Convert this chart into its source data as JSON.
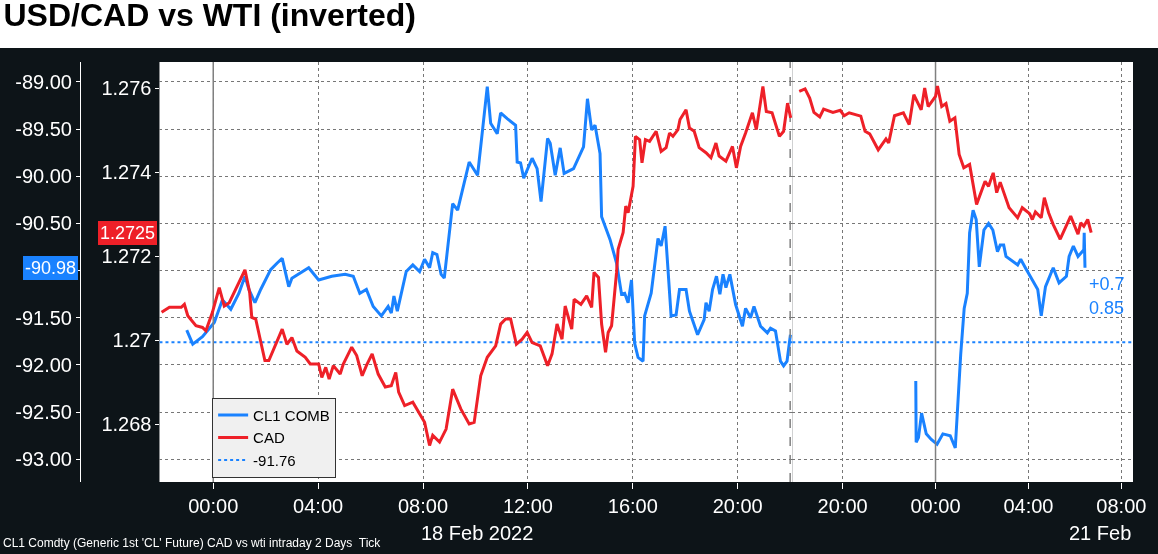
{
  "chart_data": [
    {
      "type": "line",
      "title": "USD/CAD vs WTI (inverted)",
      "xlim": [
        -2.05,
        22.08
      ],
      "xticks": [
        {
          "value": 0,
          "label": "00:00"
        },
        {
          "value": 4,
          "label": "04:00"
        },
        {
          "value": 8,
          "label": "08:00"
        },
        {
          "value": 12,
          "label": "12:00"
        },
        {
          "value": 16,
          "label": "16:00"
        },
        {
          "value": 20,
          "label": "20:00"
        }
      ],
      "ylim": [
        -93.24,
        -88.79
      ],
      "yticks": [
        {
          "value": -89,
          "label": "-89.00"
        },
        {
          "value": -89.5,
          "label": "-89.50"
        },
        {
          "value": -90,
          "label": "-90.00"
        },
        {
          "value": -90.5,
          "label": "-90.50"
        },
        {
          "value": -91,
          "label": null
        },
        {
          "value": -91.5,
          "label": "-91.50"
        },
        {
          "value": -92,
          "label": "-92.00"
        },
        {
          "value": -92.5,
          "label": "-92.50"
        },
        {
          "value": -93,
          "label": "-93.00"
        }
      ],
      "y2lim": [
        1.26662,
        1.27662
      ],
      "y2ticks": [
        1.268,
        1.27,
        1.272,
        1.274,
        1.276
      ],
      "grid": true,
      "legend": "bottom left",
      "marker": "none",
      "line_style": "solid",
      "series": [
        {
          "name": "CL1 COMB",
          "color": "#1a82ff",
          "x": [
            -1.01,
            -0.78,
            -0.41,
            0.04,
            0.35,
            0.67,
            0.98,
            1.21,
            1.36,
            1.59,
            1.81,
            2.19,
            2.44,
            2.63,
            2.88,
            3.0,
            3.64,
            4.02,
            4.52,
            5.03,
            5.34,
            5.59,
            5.84,
            6.1,
            6.41,
            6.67,
            6.79,
            6.89,
            7.02,
            7.36,
            7.61,
            7.87,
            8.06,
            8.25,
            8.37,
            8.53,
            8.69,
            8.81,
            9.13,
            9.32,
            9.76,
            10.08,
            10.27,
            10.45,
            10.58,
            10.83,
            10.96,
            11.21,
            11.53,
            11.59,
            11.72,
            11.84,
            12.16,
            12.35,
            12.5,
            12.75,
            12.85,
            13.04,
            13.23,
            13.38,
            13.74,
            14.12,
            14.27,
            14.43,
            14.56,
            14.75,
            14.81,
            15.13,
            15.38,
            15.57,
            15.69,
            15.82,
            15.95,
            16.07,
            16.2,
            16.39,
            16.45,
            16.7,
            16.96,
            17.08,
            17.23,
            17.46,
            17.65,
            17.78,
            18.03,
            18.16,
            18.47,
            18.72,
            18.79,
            18.91,
            19.04,
            19.19,
            19.32,
            19.44,
            19.55,
            19.7,
            19.92,
            20.18,
            20.3,
            20.49,
            20.62,
            20.87,
            21.13,
            21.25,
            21.44,
            21.63,
            21.75,
            21.88,
            22.01
          ],
          "values": [
            -91.63,
            -91.78,
            -91.7,
            -91.55,
            -91.31,
            -91.41,
            -91.24,
            -91.06,
            -91.2,
            -91.34,
            -91.2,
            -90.99,
            -90.92,
            -90.87,
            -91.17,
            -91.08,
            -90.97,
            -91.1,
            -91.06,
            -91.04,
            -91.06,
            -91.24,
            -91.2,
            -91.38,
            -91.48,
            -91.38,
            -91.45,
            -91.27,
            -91.43,
            -91.01,
            -90.94,
            -91.01,
            -90.88,
            -90.97,
            -90.81,
            -90.83,
            -91.04,
            -91.08,
            -90.29,
            -90.36,
            -89.85,
            -89.99,
            -89.51,
            -89.05,
            -89.44,
            -89.55,
            -89.33,
            -89.39,
            -89.46,
            -89.85,
            -89.86,
            -90.02,
            -89.81,
            -89.92,
            -90.27,
            -89.6,
            -89.65,
            -89.99,
            -89.7,
            -89.97,
            -89.92,
            -89.69,
            -89.18,
            -89.51,
            -89.46,
            -89.76,
            -90.43,
            -90.67,
            -90.92,
            -91.25,
            -91.24,
            -91.34,
            -91.1,
            -91.77,
            -91.92,
            -91.96,
            -91.48,
            -91.24,
            -90.66,
            -90.74,
            -90.53,
            -91.48,
            -91.47,
            -91.2,
            -91.2,
            -91.43,
            -91.68,
            -91.52,
            -91.34,
            -91.43,
            -91.2,
            -91.06,
            -91.25,
            -91.04,
            -91.18,
            -91.04,
            -91.36,
            -91.59,
            -91.4,
            -91.5,
            -91.38,
            -91.59,
            -91.66,
            -91.61,
            -91.64,
            -91.96,
            -92.01,
            -91.96,
            -91.68
          ]
        },
        {
          "name": "CAD",
          "color": "#ee2028",
          "axis": "y2",
          "x": [
            -1.97,
            -1.67,
            -1.22,
            -1.1,
            -0.97,
            -0.66,
            -0.41,
            -0.28,
            -0.03,
            0.23,
            0.42,
            0.61,
            1.21,
            1.39,
            1.47,
            1.62,
            1.97,
            2.12,
            2.63,
            2.81,
            3.0,
            3.19,
            3.51,
            3.7,
            4.02,
            4.14,
            4.29,
            4.42,
            4.58,
            4.84,
            4.96,
            5.28,
            5.47,
            5.68,
            5.84,
            6.06,
            6.29,
            6.56,
            6.79,
            6.96,
            7.07,
            7.3,
            7.61,
            8.06,
            8.25,
            8.37,
            8.63,
            8.88,
            9.13,
            9.44,
            9.76,
            9.95,
            10.2,
            10.45,
            10.77,
            10.96,
            11.15,
            11.34,
            11.56,
            11.78,
            11.97,
            12.16,
            12.47,
            12.75,
            12.92,
            13.11,
            13.3,
            13.42,
            13.67,
            13.76,
            14.02,
            14.24,
            14.43,
            14.52,
            14.69,
            14.81,
            14.96,
            15.06,
            15.19,
            15.38,
            15.44,
            15.63,
            15.73,
            15.82,
            16.01,
            16.1,
            16.26,
            16.35,
            16.48,
            16.64,
            16.89,
            17.08,
            17.27,
            17.4,
            17.53,
            17.72,
            17.8,
            18.03,
            18.16,
            18.34,
            18.53,
            18.79,
            18.98,
            19.17,
            19.29,
            19.55,
            19.8,
            19.95,
            20.11,
            20.3,
            20.56,
            20.71,
            20.96,
            21.09,
            21.31,
            21.59,
            21.75,
            21.9,
            22.02
          ],
          "values": [
            1.27066,
            1.27078,
            1.27078,
            1.27085,
            1.27058,
            1.27034,
            1.2703,
            1.27022,
            1.27066,
            1.27125,
            1.27081,
            1.27089,
            1.27167,
            1.27113,
            1.27054,
            1.2705,
            1.26951,
            1.26951,
            1.27026,
            1.2699,
            1.27006,
            1.26974,
            1.26959,
            1.26943,
            1.26943,
            1.26911,
            1.26935,
            1.26907,
            1.26939,
            1.26919,
            1.26943,
            1.26983,
            1.26963,
            1.26915,
            1.26939,
            1.26967,
            1.26919,
            1.26888,
            1.26891,
            1.26923,
            1.26876,
            1.26844,
            1.26852,
            1.26804,
            1.26749,
            1.26773,
            1.26757,
            1.26788,
            1.26883,
            1.26836,
            1.268,
            1.26804,
            1.26915,
            1.26959,
            1.26986,
            1.27038,
            1.2705,
            1.2705,
            1.2699,
            1.27002,
            1.27018,
            1.26994,
            1.26986,
            1.26939,
            1.26967,
            1.27038,
            1.27002,
            1.27081,
            1.27026,
            1.27097,
            1.27085,
            1.27105,
            1.27078,
            1.27161,
            1.27149,
            1.27038,
            1.26971,
            1.27018,
            1.27034,
            1.27161,
            1.27216,
            1.27256,
            1.27319,
            1.27303,
            1.27366,
            1.27485,
            1.27477,
            1.27422,
            1.27477,
            1.27473,
            1.27497,
            1.27449,
            1.27458,
            1.27493,
            1.27485,
            1.27501,
            1.27525,
            1.27548,
            1.27505,
            1.27497,
            1.27458,
            1.27446,
            1.27434,
            1.27469,
            1.27438,
            1.27426,
            1.27461,
            1.2741,
            1.27461,
            1.27493,
            1.27541,
            1.27501,
            1.27604,
            1.27544,
            1.27541,
            1.27485,
            1.27497,
            1.27564,
            1.27529
          ]
        }
      ],
      "ref_lines": [
        {
          "axis": "y",
          "value": -91.76,
          "label": "-91.76",
          "color": "#1a82ff",
          "line_style": "dotted"
        },
        {
          "axis": "x",
          "value": 0,
          "color": "#808080",
          "line_style": "solid"
        },
        {
          "axis": "x",
          "value": 22,
          "color": "#808080",
          "line_style": "dashed"
        }
      ],
      "annotations": [
        "18 Feb 2022",
        "CL1 Comdty (Generic 1st 'CL' Future) CAD vs wti intraday 2 Days  Tick",
        "1.2725",
        "-90.98"
      ]
    },
    {
      "type": "line",
      "xlim": [
        "2022-02-20T17:50",
        "2022-02-21T08:30"
      ],
      "xticks": [
        {
          "value": "2022-02-20T20:00",
          "label": "20:00"
        },
        {
          "value": "2022-02-21T00:00",
          "label": "00:00"
        },
        {
          "value": "2022-02-21T04:00",
          "label": "04:00"
        },
        {
          "value": "2022-02-21T08:00",
          "label": "08:00"
        }
      ],
      "ylim": [
        -93.24,
        -88.79
      ],
      "yticks": [
        -89,
        -89.5,
        -90,
        -90.5,
        -91,
        -91.5,
        -92,
        -92.5,
        -93
      ],
      "y2lim": [
        1.26662,
        1.27662
      ],
      "tick_labels": "x",
      "grid": true,
      "marker": "none",
      "line_style": "solid",
      "series": [
        {
          "color": "#1a82ff",
          "x": [
            "2022-02-20T23:09",
            "2022-02-20T23:10",
            "2022-02-20T23:16",
            "2022-02-20T23:24",
            "2022-02-20T23:36",
            "2022-02-20T23:49",
            "2022-02-21T00:04",
            "2022-02-21T00:19",
            "2022-02-21T00:38",
            "2022-02-21T00:51",
            "2022-02-21T01:05",
            "2022-02-21T01:14",
            "2022-02-21T01:22",
            "2022-02-21T01:28",
            "2022-02-21T01:37",
            "2022-02-21T01:45",
            "2022-02-21T01:53",
            "2022-02-21T02:05",
            "2022-02-21T02:17",
            "2022-02-21T02:28",
            "2022-02-21T02:40",
            "2022-02-21T02:47",
            "2022-02-21T02:56",
            "2022-02-21T03:02",
            "2022-02-21T03:32",
            "2022-02-21T03:40",
            "2022-02-21T03:52",
            "2022-02-21T04:24",
            "2022-02-21T04:33",
            "2022-02-21T04:44",
            "2022-02-21T05:04",
            "2022-02-21T05:19",
            "2022-02-21T05:38",
            "2022-02-21T05:45",
            "2022-02-21T05:56",
            "2022-02-21T06:08",
            "2022-02-21T06:23",
            "2022-02-21T06:24",
            "2022-02-21T06:26"
          ],
          "values": [
            -92.17,
            -92.82,
            -92.77,
            -92.51,
            -92.73,
            -92.79,
            -92.84,
            -92.73,
            -92.75,
            -92.88,
            -91.89,
            -91.4,
            -91.24,
            -90.6,
            -90.36,
            -90.46,
            -90.96,
            -90.57,
            -90.5,
            -90.57,
            -90.8,
            -90.73,
            -90.73,
            -90.85,
            -90.94,
            -90.88,
            -90.97,
            -91.2,
            -91.48,
            -91.17,
            -90.97,
            -91.13,
            -91.06,
            -90.85,
            -90.74,
            -90.85,
            -90.78,
            -90.6,
            -90.97
          ]
        },
        {
          "color": "#ee2028",
          "axis": "y2",
          "x": [
            "2022-02-20T18:08",
            "2022-02-20T18:23",
            "2022-02-20T18:35",
            "2022-02-20T18:46",
            "2022-02-20T19:01",
            "2022-02-20T19:11",
            "2022-02-20T19:35",
            "2022-02-20T19:54",
            "2022-02-20T20:04",
            "2022-02-20T20:17",
            "2022-02-20T20:47",
            "2022-02-20T20:58",
            "2022-02-20T21:10",
            "2022-02-20T21:32",
            "2022-02-20T21:52",
            "2022-02-20T21:59",
            "2022-02-20T22:14",
            "2022-02-20T22:37",
            "2022-02-20T22:52",
            "2022-02-20T23:04",
            "2022-02-20T23:23",
            "2022-02-20T23:32",
            "2022-02-20T23:41",
            "2022-02-21T00:00",
            "2022-02-21T00:05",
            "2022-02-21T00:16",
            "2022-02-21T00:27",
            "2022-02-21T00:37",
            "2022-02-21T00:50",
            "2022-02-21T01:01",
            "2022-02-21T01:13",
            "2022-02-21T01:28",
            "2022-02-21T01:46",
            "2022-02-21T02:08",
            "2022-02-21T02:17",
            "2022-02-21T02:29",
            "2022-02-21T02:38",
            "2022-02-21T02:47",
            "2022-02-21T03:10",
            "2022-02-21T03:32",
            "2022-02-21T03:44",
            "2022-02-21T04:03",
            "2022-02-21T04:10",
            "2022-02-21T04:18",
            "2022-02-21T04:33",
            "2022-02-21T04:41",
            "2022-02-21T04:52",
            "2022-02-21T05:04",
            "2022-02-21T05:22",
            "2022-02-21T05:49",
            "2022-02-21T06:08",
            "2022-02-21T06:15",
            "2022-02-21T06:23",
            "2022-02-21T06:33",
            "2022-02-21T06:42"
          ],
          "values": [
            1.27592,
            1.27598,
            1.27576,
            1.27542,
            1.27531,
            1.2755,
            1.27542,
            1.27547,
            1.27534,
            1.27541,
            1.27533,
            1.27497,
            1.27491,
            1.27453,
            1.27479,
            1.27469,
            1.27534,
            1.27541,
            1.27513,
            1.27584,
            1.27548,
            1.276,
            1.27556,
            1.2758,
            1.27605,
            1.27556,
            1.27563,
            1.27521,
            1.27529,
            1.27442,
            1.2741,
            1.27418,
            1.27323,
            1.27378,
            1.27366,
            1.27398,
            1.27351,
            1.27376,
            1.27315,
            1.27291,
            1.27315,
            1.27301,
            1.27287,
            1.27305,
            1.27291,
            1.27339,
            1.27303,
            1.27275,
            1.2724,
            1.27295,
            1.27252,
            1.27279,
            1.27271,
            1.27287,
            1.27256
          ]
        }
      ],
      "ref_lines": [
        {
          "axis": "y",
          "value": -91.76,
          "color": "#1a82ff",
          "line_style": "dotted"
        },
        {
          "axis": "x",
          "value": "2022-02-21T00:00",
          "color": "#808080",
          "line_style": "solid"
        }
      ],
      "annotations": [
        "21 Feb",
        "+0.7",
        "0.85"
      ]
    }
  ]
}
